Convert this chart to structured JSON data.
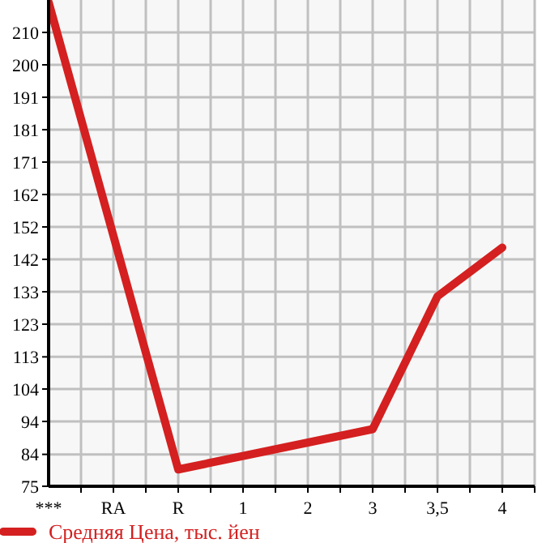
{
  "chart_data": {
    "type": "line",
    "categories": [
      "***",
      "RA",
      "R",
      "1",
      "2",
      "3",
      "3,5",
      "4"
    ],
    "series": [
      {
        "name": "Средняя Цена, тыс. йен",
        "color": "#d42020",
        "values": [
          219,
          null,
          80,
          null,
          null,
          92,
          131.5,
          146
        ]
      }
    ],
    "ylim": [
      75,
      219.64
    ],
    "yticks": [
      75,
      {
        "value": 84.49,
        "label": "84"
      },
      {
        "value": 94.29,
        "label": "94"
      },
      {
        "value": 103.93,
        "label": "104"
      },
      {
        "value": 113.49,
        "label": "113"
      },
      {
        "value": 123.21,
        "label": "123"
      },
      {
        "value": 132.86,
        "label": "133"
      },
      {
        "value": 142.5,
        "label": "142"
      },
      {
        "value": 152.14,
        "label": "152"
      },
      {
        "value": 161.79,
        "label": "162"
      },
      {
        "value": 171.43,
        "label": "171"
      },
      {
        "value": 181.07,
        "label": "181"
      },
      {
        "value": 190.71,
        "label": "191"
      },
      {
        "value": 200.36,
        "label": "200"
      },
      {
        "value": 210,
        "label": "210"
      }
    ],
    "grid": true,
    "legend": "bottom",
    "line_style": "solid",
    "marker": "none"
  }
}
